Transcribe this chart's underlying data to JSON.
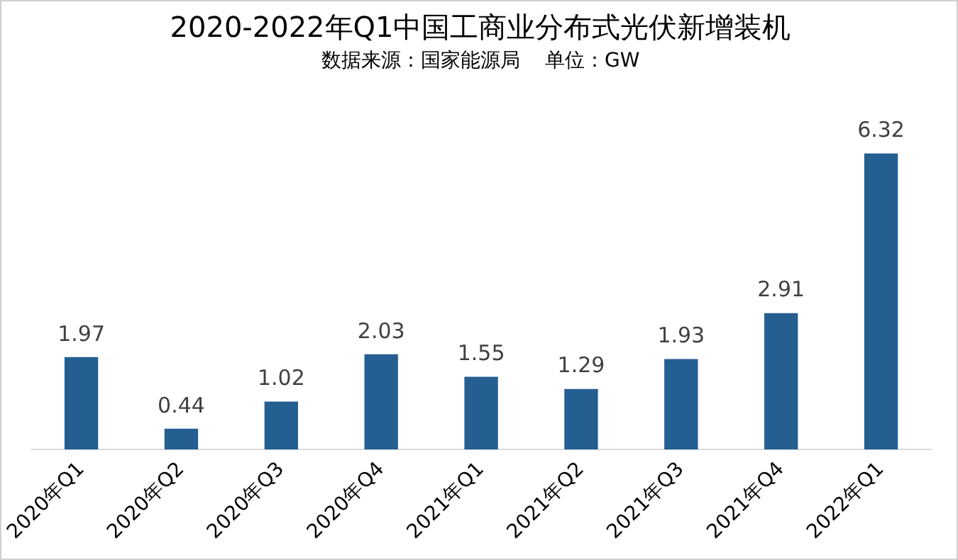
{
  "chart_data": {
    "type": "bar",
    "title": "2020-2022年Q1中国工商业分布式光伏新增装机",
    "subtitle": "数据来源：国家能源局    单位：GW",
    "categories": [
      "2020年Q1",
      "2020年Q2",
      "2020年Q3",
      "2020年Q4",
      "2021年Q1",
      "2021年Q2",
      "2021年Q3",
      "2021年Q4",
      "2022年Q1"
    ],
    "values": [
      1.97,
      0.44,
      1.02,
      2.03,
      1.55,
      1.29,
      1.93,
      2.91,
      6.32
    ],
    "color": "#255e91",
    "data_labels": true,
    "grid": false,
    "legend": false
  }
}
